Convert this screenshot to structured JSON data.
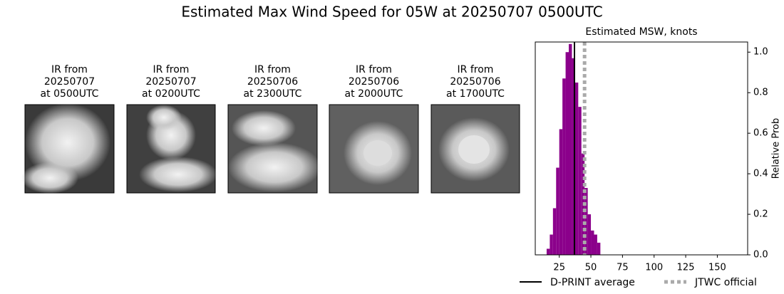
{
  "title": "Estimated Max Wind Speed for 05W at 20250707 0500UTC",
  "panels": [
    {
      "title": [
        "IR from",
        "20250707",
        "at 0500UTC"
      ]
    },
    {
      "title": [
        "IR from",
        "20250707",
        "at 0200UTC"
      ]
    },
    {
      "title": [
        "IR from",
        "20250706",
        "at 2300UTC"
      ]
    },
    {
      "title": [
        "IR from",
        "20250706",
        "at 2000UTC"
      ]
    },
    {
      "title": [
        "IR from",
        "20250706",
        "at 1700UTC"
      ]
    }
  ],
  "chart_data": {
    "type": "histogram",
    "title": "Estimated MSW, knots",
    "ylabel": "Relative Prob",
    "bins": [
      15,
      17.5,
      20,
      22.5,
      25,
      27.5,
      30,
      32.5,
      35,
      37.5,
      40,
      42.5,
      45,
      47.5,
      50,
      52.5,
      55,
      57.5
    ],
    "counts": [
      0.03,
      0.1,
      0.23,
      0.43,
      0.62,
      0.87,
      1.0,
      1.04,
      0.97,
      0.85,
      0.73,
      0.5,
      0.33,
      0.2,
      0.12,
      0.1,
      0.06
    ],
    "color": "#8b008b",
    "xlim": [
      6,
      174
    ],
    "ylim": [
      0,
      1.05
    ],
    "xticks": [
      25,
      50,
      75,
      100,
      125,
      150
    ],
    "yticks": [
      {
        "value": 0,
        "label": "0.0"
      },
      0.2,
      0.4,
      0.6,
      0.8,
      {
        "value": 1,
        "label": "1.0"
      }
    ],
    "lines": [
      {
        "name": "D-PRINT average",
        "value": 37,
        "color": "#000000",
        "style": "solid"
      },
      {
        "name": "JTWC official",
        "value": 45,
        "color": "#aaaaaa",
        "style": "dotted"
      }
    ]
  }
}
